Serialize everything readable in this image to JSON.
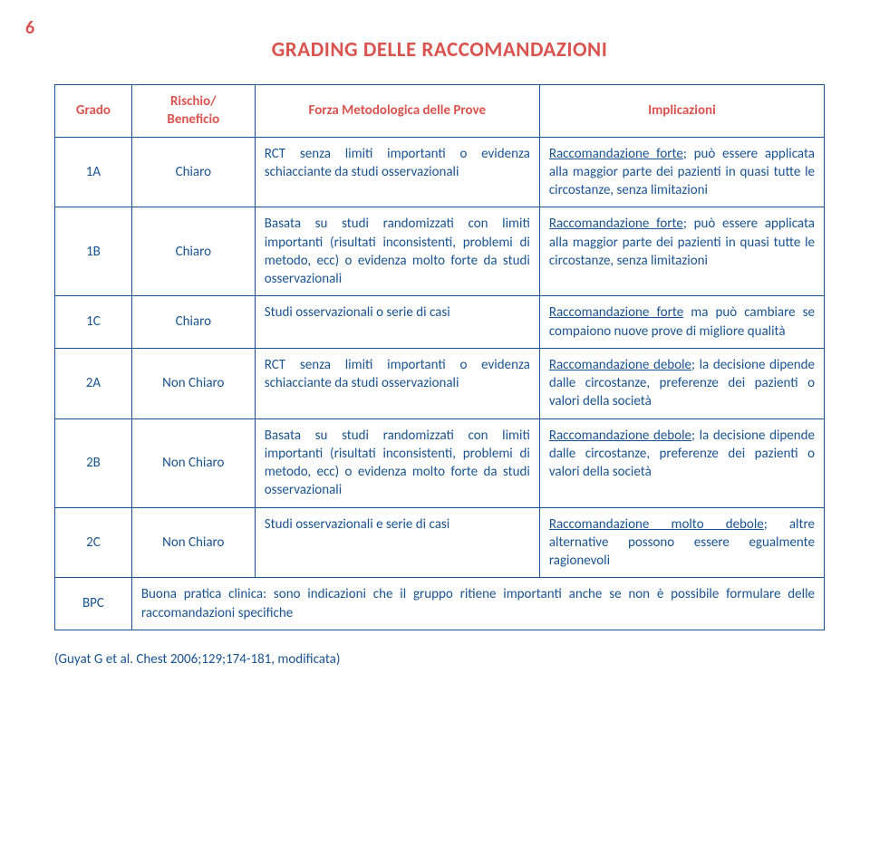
{
  "page_number": "6",
  "title": "GRADING DELLE RACCOMANDAZIONI",
  "headers": {
    "col1": "Grado",
    "col2": "Rischio/\nBeneficio",
    "col3": "Forza Metodologica delle Prove",
    "col4": "Implicazioni"
  },
  "rows": [
    {
      "grade": "1A",
      "risk": "Chiaro",
      "force": "RCT senza limiti importanti o evidenza schiacciante da studi osservazionali",
      "impl_u": "Raccomandazione forte",
      "impl_rest": "; può essere applicata alla maggior parte dei pazienti in quasi tutte le circostanze, senza limitazioni"
    },
    {
      "grade": "1B",
      "risk": "Chiaro",
      "force": "Basata su studi randomizzati con limiti importanti (risultati inconsistenti, problemi di metodo, ecc) o evidenza molto forte da studi osservazionali",
      "impl_u": "Raccomandazione forte",
      "impl_rest": "; può essere applicata alla maggior parte dei pazienti in quasi tutte le circostanze, senza limitazioni"
    },
    {
      "grade": "1C",
      "risk": "Chiaro",
      "force": "Studi osservazionali o serie di casi",
      "impl_u": "Raccomandazione forte",
      "impl_rest": " ma può cambiare se compaiono nuove prove di migliore qualità"
    },
    {
      "grade": "2A",
      "risk": "Non Chiaro",
      "force": "RCT senza limiti importanti o evidenza schiacciante da studi osservazionali",
      "impl_u": "Raccomandazione debole",
      "impl_rest": "; la decisione dipende dalle circostanze, preferenze dei pazienti o valori della società"
    },
    {
      "grade": "2B",
      "risk": "Non Chiaro",
      "force": "Basata su studi randomizzati con limiti importanti (risultati inconsistenti, problemi di metodo, ecc) o evidenza molto forte da studi osservazionali",
      "impl_u": "Raccomandazione debole",
      "impl_rest": "; la decisione dipende dalle circostanze, preferenze dei pazienti o valori della società"
    },
    {
      "grade": "2C",
      "risk": "Non Chiaro",
      "force": "Studi osservazionali e serie di casi",
      "impl_u": "Raccomandazione molto debole",
      "impl_rest": "; altre alternative possono essere egualmente ragionevoli"
    }
  ],
  "bpc": {
    "grade": "BPC",
    "text": "Buona pratica clinica: sono indicazioni che il gruppo ritiene importanti anche se non è possibile formulare delle raccomandazioni specifiche"
  },
  "citation": "(Guyat G et al. Chest 2006;129;174-181, modificata)"
}
